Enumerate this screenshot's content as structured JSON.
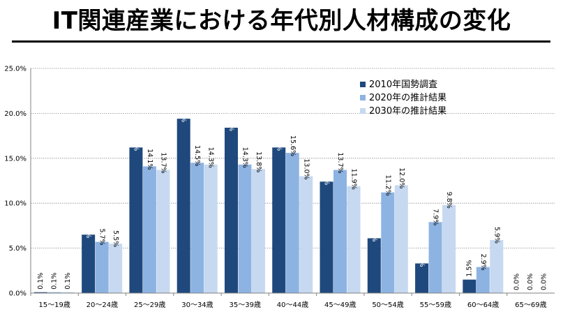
{
  "chart_data": {
    "type": "bar",
    "title": "IT関連産業における年代別人材構成の変化",
    "categories": [
      "15〜19歳",
      "20〜24歳",
      "25〜29歳",
      "30〜34歳",
      "35〜39歳",
      "40〜44歳",
      "45〜49歳",
      "50〜54歳",
      "55〜59歳",
      "60〜64歳",
      "65〜69歳"
    ],
    "series": [
      {
        "name": "2010年国勢調査",
        "color": "#1f497d",
        "values": [
          0.1,
          6.5,
          16.2,
          19.4,
          18.4,
          16.2,
          12.4,
          6.1,
          3.3,
          1.5,
          0.0
        ],
        "labels": [
          "0.1%",
          "6.5%",
          "16.2%",
          "19.4%",
          "18.4%",
          "16.2%",
          "12.4%",
          "6.1%",
          "3.3%",
          "1.5%",
          "0.0%"
        ]
      },
      {
        "name": "2020年の推計結果",
        "color": "#8db3e2",
        "values": [
          0.1,
          5.7,
          14.1,
          14.5,
          14.3,
          15.6,
          13.7,
          11.2,
          7.9,
          2.9,
          0.0
        ],
        "labels": [
          "0.1%",
          "5.7%",
          "14.1%",
          "14.5%",
          "14.3%",
          "15.6%",
          "13.7%",
          "11.2%",
          "7.9%",
          "2.9%",
          "0.0%"
        ]
      },
      {
        "name": "2030年の推計結果",
        "color": "#c6d9f1",
        "values": [
          0.1,
          5.5,
          13.7,
          14.3,
          13.8,
          13.0,
          11.9,
          12.0,
          9.8,
          5.9,
          0.0
        ],
        "labels": [
          "0.1%",
          "5.5%",
          "13.7%",
          "14.3%",
          "13.8%",
          "13.0%",
          "11.9%",
          "12.0%",
          "9.8%",
          "5.9%",
          "0.0%"
        ]
      }
    ],
    "ylim": [
      0,
      25
    ],
    "yticks": [
      "0.0%",
      "5.0%",
      "10.0%",
      "15.0%",
      "20.0%",
      "25.0%"
    ],
    "xlabel": "",
    "ylabel": "",
    "grid": true,
    "legend": "top-right"
  }
}
